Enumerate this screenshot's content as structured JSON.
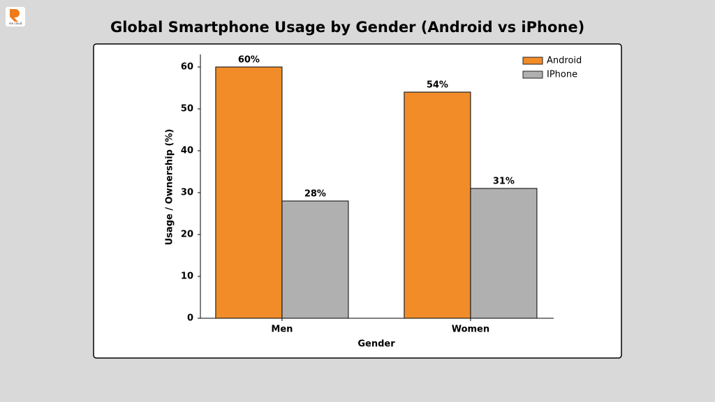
{
  "logo_text": "reo cloud",
  "chart_data": {
    "type": "bar",
    "title": "Global Smartphone Usage by Gender (Android vs iPhone)",
    "x_label": "Gender",
    "y_label": "Usage / Ownership (%)",
    "categories": [
      "Men",
      "Women"
    ],
    "series": [
      {
        "name": "Android",
        "color": "#f28c28",
        "values": [
          60,
          54
        ],
        "value_labels": [
          "60%",
          "54%"
        ]
      },
      {
        "name": "IPhone",
        "color": "#b0b0b0",
        "values": [
          28,
          31
        ],
        "value_labels": [
          "28%",
          "31%"
        ]
      }
    ],
    "ylim": [
      0,
      63
    ],
    "yticks": [
      0,
      10,
      20,
      30,
      40,
      50,
      60
    ],
    "grid": false,
    "legend": "upper right"
  }
}
